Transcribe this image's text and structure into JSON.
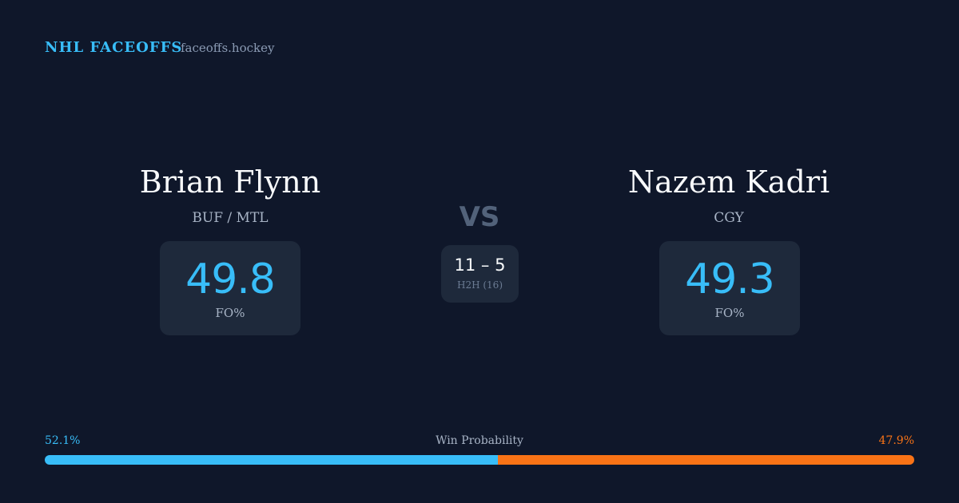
{
  "header": {
    "title": "NHL FACEOFFS",
    "site": "faceoffs.hockey"
  },
  "players": [
    {
      "name": "Brian Flynn",
      "team": "BUF / MTL",
      "stat_value": "49.8",
      "stat_label": "FO%"
    },
    {
      "name": "Nazem Kadri",
      "team": "CGY",
      "stat_value": "49.3",
      "stat_label": "FO%"
    }
  ],
  "vs": "VS",
  "h2h": {
    "score": "11 – 5",
    "label": "H2H (16)"
  },
  "win_probability": {
    "title": "Win Probability",
    "left": {
      "value": 52.1,
      "label": "52.1%",
      "color": "#38bdf8"
    },
    "right": {
      "value": 47.9,
      "label": "47.9%",
      "color": "#f97316"
    }
  }
}
